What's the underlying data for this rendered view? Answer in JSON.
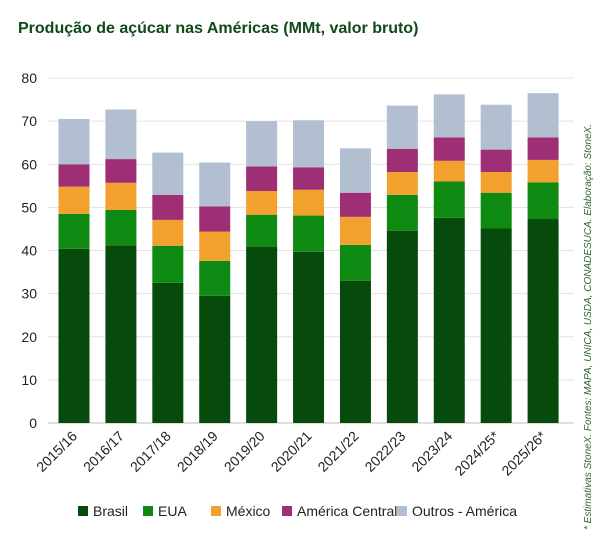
{
  "title": "Produção de açúcar nas Américas (MMt, valor bruto)",
  "source_note": "* Estimativas StoneX. Fontes: MAPA, UNICA, USDA, CONADESUCA. Elaboração: StoneX.",
  "chart_data": {
    "type": "bar",
    "stacked": true,
    "title": "Produção de açúcar nas Américas (MMt, valor bruto)",
    "xlabel": "",
    "ylabel": "",
    "ylim": [
      0,
      80
    ],
    "yticks": [
      0,
      10,
      20,
      30,
      40,
      50,
      60,
      70,
      80
    ],
    "grid": true,
    "legend_position": "bottom",
    "categories": [
      "2015/16",
      "2016/17",
      "2017/18",
      "2018/19",
      "2019/20",
      "2020/21",
      "2021/22",
      "2022/23",
      "2023/24",
      "2024/25*",
      "2025/26*"
    ],
    "series": [
      {
        "name": "Brasil",
        "color": "#074b0c",
        "values": [
          40.4,
          41.2,
          32.5,
          29.5,
          40.9,
          39.7,
          33.0,
          44.6,
          47.6,
          45.1,
          47.3
        ]
      },
      {
        "name": "EUA",
        "color": "#0e8a12",
        "values": [
          8.1,
          8.2,
          8.6,
          8.1,
          7.4,
          8.4,
          8.3,
          8.3,
          8.4,
          8.3,
          8.5
        ]
      },
      {
        "name": "México",
        "color": "#f2a12e",
        "values": [
          6.3,
          6.3,
          6.0,
          6.8,
          5.5,
          6.0,
          6.5,
          5.3,
          4.8,
          4.8,
          5.2
        ]
      },
      {
        "name": "América Central",
        "color": "#9e2f74",
        "values": [
          5.2,
          5.5,
          5.8,
          5.8,
          5.7,
          5.2,
          5.6,
          5.4,
          5.4,
          5.2,
          5.2
        ]
      },
      {
        "name": "Outros - América",
        "color": "#b2bfd1",
        "values": [
          10.5,
          11.5,
          9.8,
          10.2,
          10.5,
          10.9,
          10.3,
          10.0,
          10.0,
          10.4,
          10.3
        ]
      }
    ]
  }
}
